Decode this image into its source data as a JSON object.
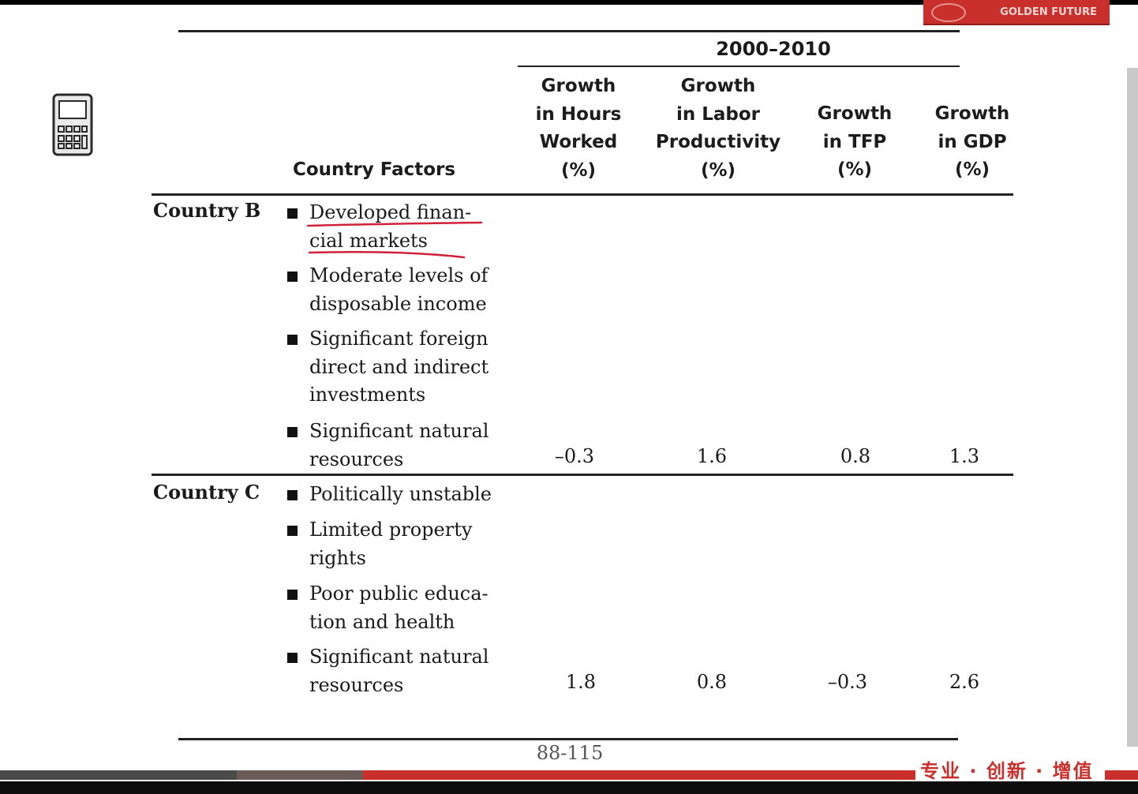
{
  "header": {
    "period": "2000–2010",
    "logo_text": "GOLDEN FUTURE"
  },
  "columns": {
    "factors": "Country Factors",
    "hours": [
      "Growth",
      "in Hours",
      "Worked",
      "(%)"
    ],
    "labor": [
      "Growth",
      "in Labor",
      "Productivity",
      "(%)"
    ],
    "tfp": [
      "Growth",
      "in TFP",
      "(%)"
    ],
    "gdp": [
      "Growth",
      "in GDP",
      "(%)"
    ]
  },
  "rows": [
    {
      "country": "Country B",
      "factors": [
        [
          "Developed finan-",
          "cial markets"
        ],
        [
          "Moderate levels of",
          "disposable income"
        ],
        [
          "Significant foreign",
          "direct and indirect",
          "investments"
        ],
        [
          "Significant natural",
          "resources"
        ]
      ],
      "hours": "–0.3",
      "labor": "1.6",
      "tfp": "0.8",
      "gdp": "1.3"
    },
    {
      "country": "Country C",
      "factors": [
        [
          "Politically unstable"
        ],
        [
          "Limited property",
          "rights"
        ],
        [
          "Poor public educa-",
          "tion and health"
        ],
        [
          "Significant natural",
          "resources"
        ]
      ],
      "hours": "1.8",
      "labor": "0.8",
      "tfp": "–0.3",
      "gdp": "2.6"
    }
  ],
  "footer": {
    "page": "88-115",
    "slogan": "专业 · 创新 · 增值"
  },
  "colors": {
    "accent": "#c9302c",
    "annotation": "#d0213a"
  },
  "icons": [
    "calculator-icon"
  ]
}
